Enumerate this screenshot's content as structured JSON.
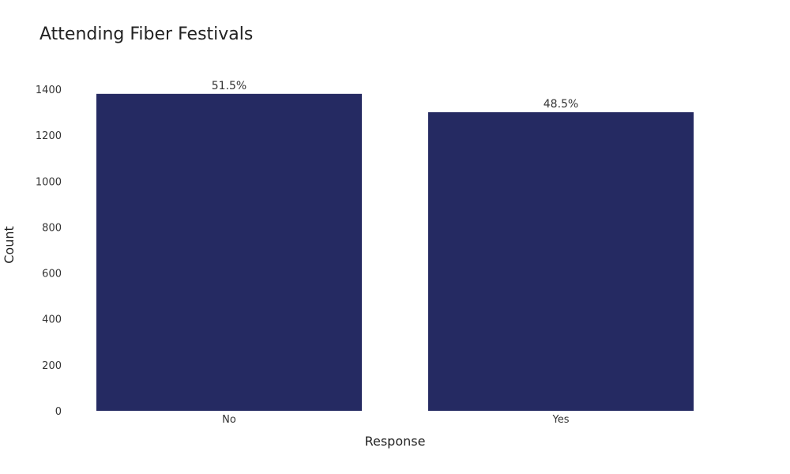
{
  "chart_data": {
    "type": "bar",
    "title": "Attending Fiber Festivals",
    "xlabel": "Response",
    "ylabel": "Count",
    "categories": [
      "No",
      "Yes"
    ],
    "values": [
      1380,
      1300
    ],
    "data_labels": [
      "51.5%",
      "48.5%"
    ],
    "ylim": [
      0,
      1400
    ],
    "yticks": [
      0,
      200,
      400,
      600,
      800,
      1000,
      1200,
      1400
    ],
    "grid": false,
    "legend": "none",
    "bar_color": "#252a62"
  }
}
